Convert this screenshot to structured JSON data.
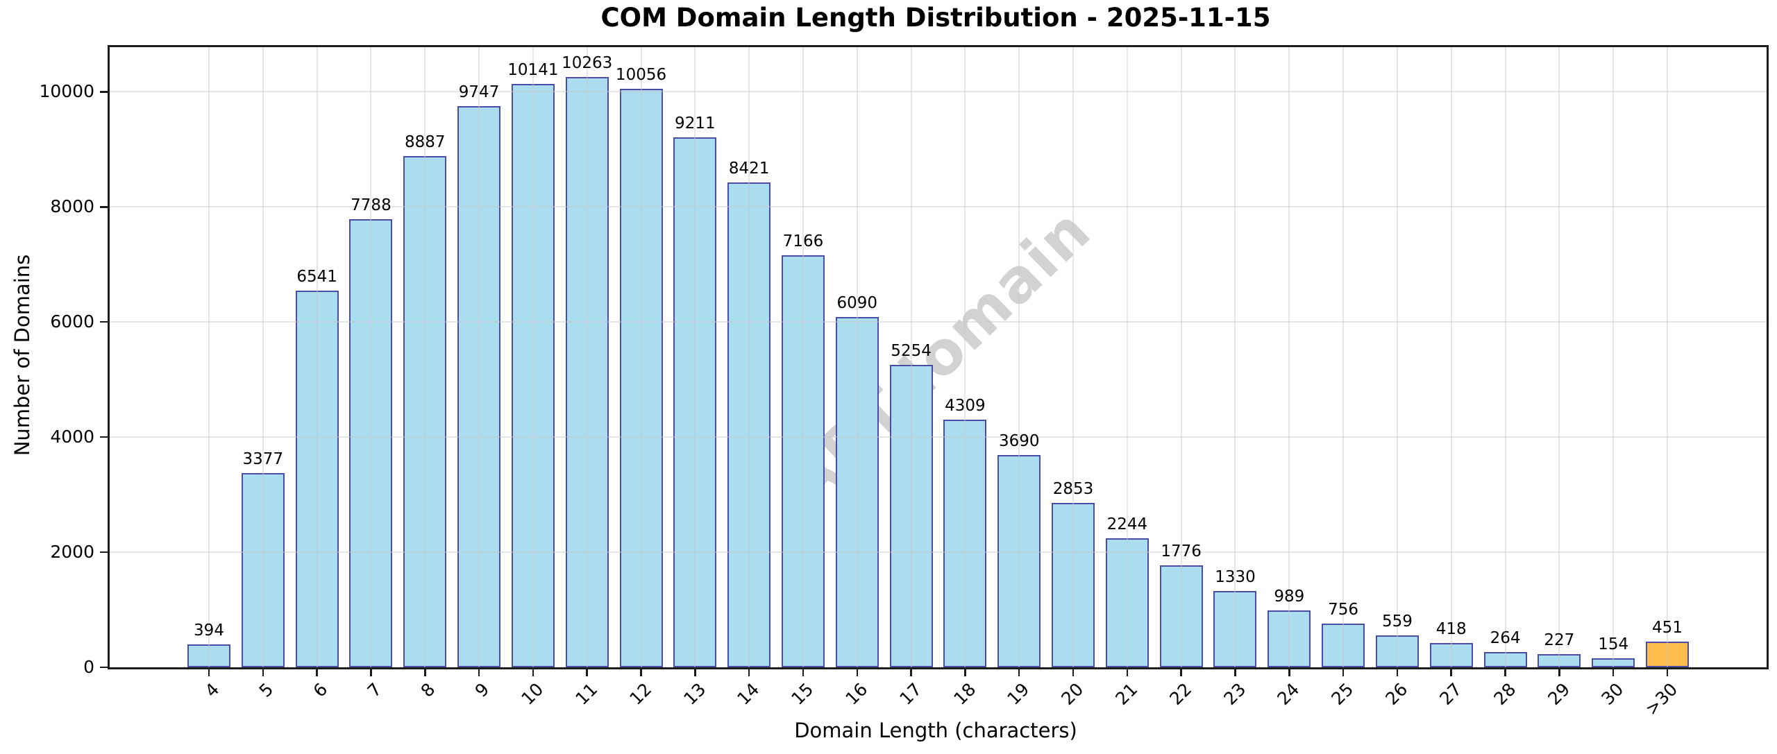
{
  "title": "COM Domain Length Distribution - 2025-11-15",
  "watermark": "ABTdomain",
  "chart_data": {
    "type": "bar",
    "title": "COM Domain Length Distribution - 2025-11-15",
    "xlabel": "Domain Length (characters)",
    "ylabel": "Number of Domains",
    "categories": [
      "4",
      "5",
      "6",
      "7",
      "8",
      "9",
      "10",
      "11",
      "12",
      "13",
      "14",
      "15",
      "16",
      "17",
      "18",
      "19",
      "20",
      "21",
      "22",
      "23",
      "24",
      "25",
      "26",
      "27",
      "28",
      "29",
      "30",
      ">30"
    ],
    "values": [
      394,
      3377,
      6541,
      7788,
      8887,
      9747,
      10141,
      10263,
      10056,
      9211,
      8421,
      7166,
      6090,
      5254,
      4309,
      3690,
      2853,
      2244,
      1776,
      1330,
      989,
      756,
      559,
      418,
      264,
      227,
      154,
      451
    ],
    "bar_labels_shown": true,
    "yticks": [
      0,
      2000,
      4000,
      6000,
      8000,
      10000
    ],
    "ylim": [
      0,
      10776
    ],
    "grid": true,
    "grid_above_bars": true,
    "legend_position": "none",
    "highlight_index": 27,
    "colors": {
      "bar_fill": "#abddf1",
      "bar_edge": "#4a4ca6",
      "highlight_fill": "#fdbc4b",
      "highlight_edge": "#4a4ca6",
      "grid": "rgba(200,200,200,0.45)",
      "watermark": "rgba(125,125,125,0.35)",
      "axis": "#1c1c1c",
      "text": "#000000"
    }
  }
}
